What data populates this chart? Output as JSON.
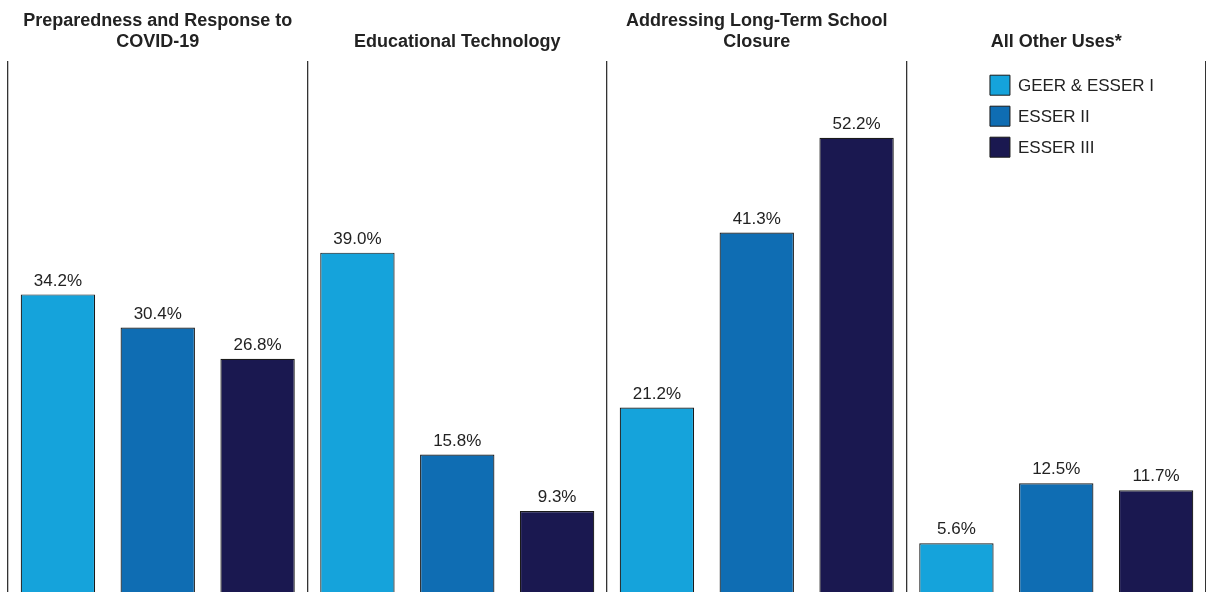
{
  "chart_data": {
    "type": "bar",
    "categories": [
      "Preparedness and Response to COVID-19",
      "Educational Technology",
      "Addressing Long-Term School Closure",
      "All Other Uses*"
    ],
    "series": [
      {
        "name": "GEER & ESSER I",
        "color": "#15a3db",
        "values": [
          34.2,
          39.0,
          21.2,
          5.6
        ],
        "value_labels": [
          "34.2%",
          "39.0%",
          "21.2%",
          "5.6%"
        ]
      },
      {
        "name": "ESSER II",
        "color": "#0f6db3",
        "values": [
          30.4,
          15.8,
          41.3,
          12.5
        ],
        "value_labels": [
          "30.4%",
          "15.8%",
          "41.3%",
          "12.5%"
        ]
      },
      {
        "name": "ESSER III",
        "color": "#1a1850",
        "values": [
          26.8,
          9.3,
          52.2,
          11.7
        ],
        "value_labels": [
          "26.8%",
          "9.3%",
          "52.2%",
          "11.7%"
        ]
      }
    ],
    "ylim": [
      0,
      61
    ],
    "grid": "x",
    "legend": "top right",
    "tick_labels": "x"
  }
}
